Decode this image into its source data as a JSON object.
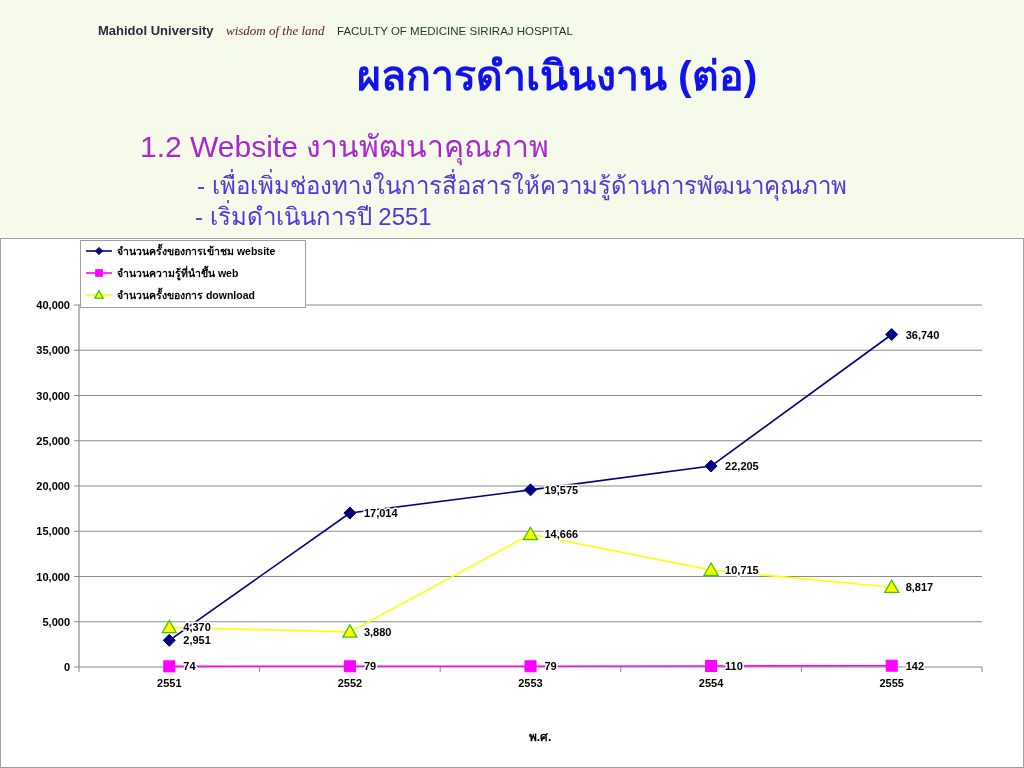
{
  "chart_data": {
    "type": "line",
    "title": "ผลการดำเนินงาน (ต่อ)",
    "subtitle": "1.2 Website งานพัฒนาคุณภาพ",
    "annotations": [
      "Mahidol University",
      "wisdom of the land",
      "FACULTY OF MEDICINE SIRIRAJ HOSPITAL",
      "- เพื่อเพิ่มช่องทางในการสื่อสารให้ความรู้ด้านการพัฒนาคุณภาพ",
      "- เริ่มดำเนินการปี 2551"
    ],
    "xlabel": "พ.ศ.",
    "categories": [
      "2551",
      "2552",
      "2553",
      "2554",
      "2555"
    ],
    "series": [
      {
        "name": "จำนวนครั้งของการเข้าชม website",
        "color": "#000080",
        "marker": "diamond",
        "values": [
          2951,
          17014,
          19575,
          22205,
          36740
        ],
        "value_labels": [
          "2,951",
          "17,014",
          "19,575",
          "22,205",
          "36,740"
        ]
      },
      {
        "name": "จำนวนความรู้ที่นำขึ้น web",
        "color": "#ff00ff",
        "marker": "square",
        "values": [
          74,
          79,
          79,
          110,
          142
        ],
        "value_labels": [
          "74",
          "79",
          "79",
          "110",
          "142"
        ]
      },
      {
        "name": "จำนวนครั้งของการ download",
        "color": "#ffff00",
        "marker": "triangle",
        "values": [
          4370,
          3880,
          14666,
          10715,
          8817
        ],
        "value_labels": [
          "4,370",
          "3,880",
          "14,666",
          "10,715",
          "8,817"
        ]
      }
    ],
    "ylim": [
      0,
      40000
    ],
    "yticks": [
      0,
      {
        "value": 5000,
        "label": "5,000"
      },
      {
        "value": 10000,
        "label": "10,000"
      },
      {
        "value": 15000,
        "label": "15,000"
      },
      {
        "value": 20000,
        "label": "20,000"
      },
      {
        "value": 25000,
        "label": "25,000"
      },
      {
        "value": 30000,
        "label": "30,000"
      },
      {
        "value": 35000,
        "label": "35,000"
      },
      {
        "value": 40000,
        "label": "40,000"
      }
    ],
    "grid": "y",
    "legend": "top left"
  }
}
